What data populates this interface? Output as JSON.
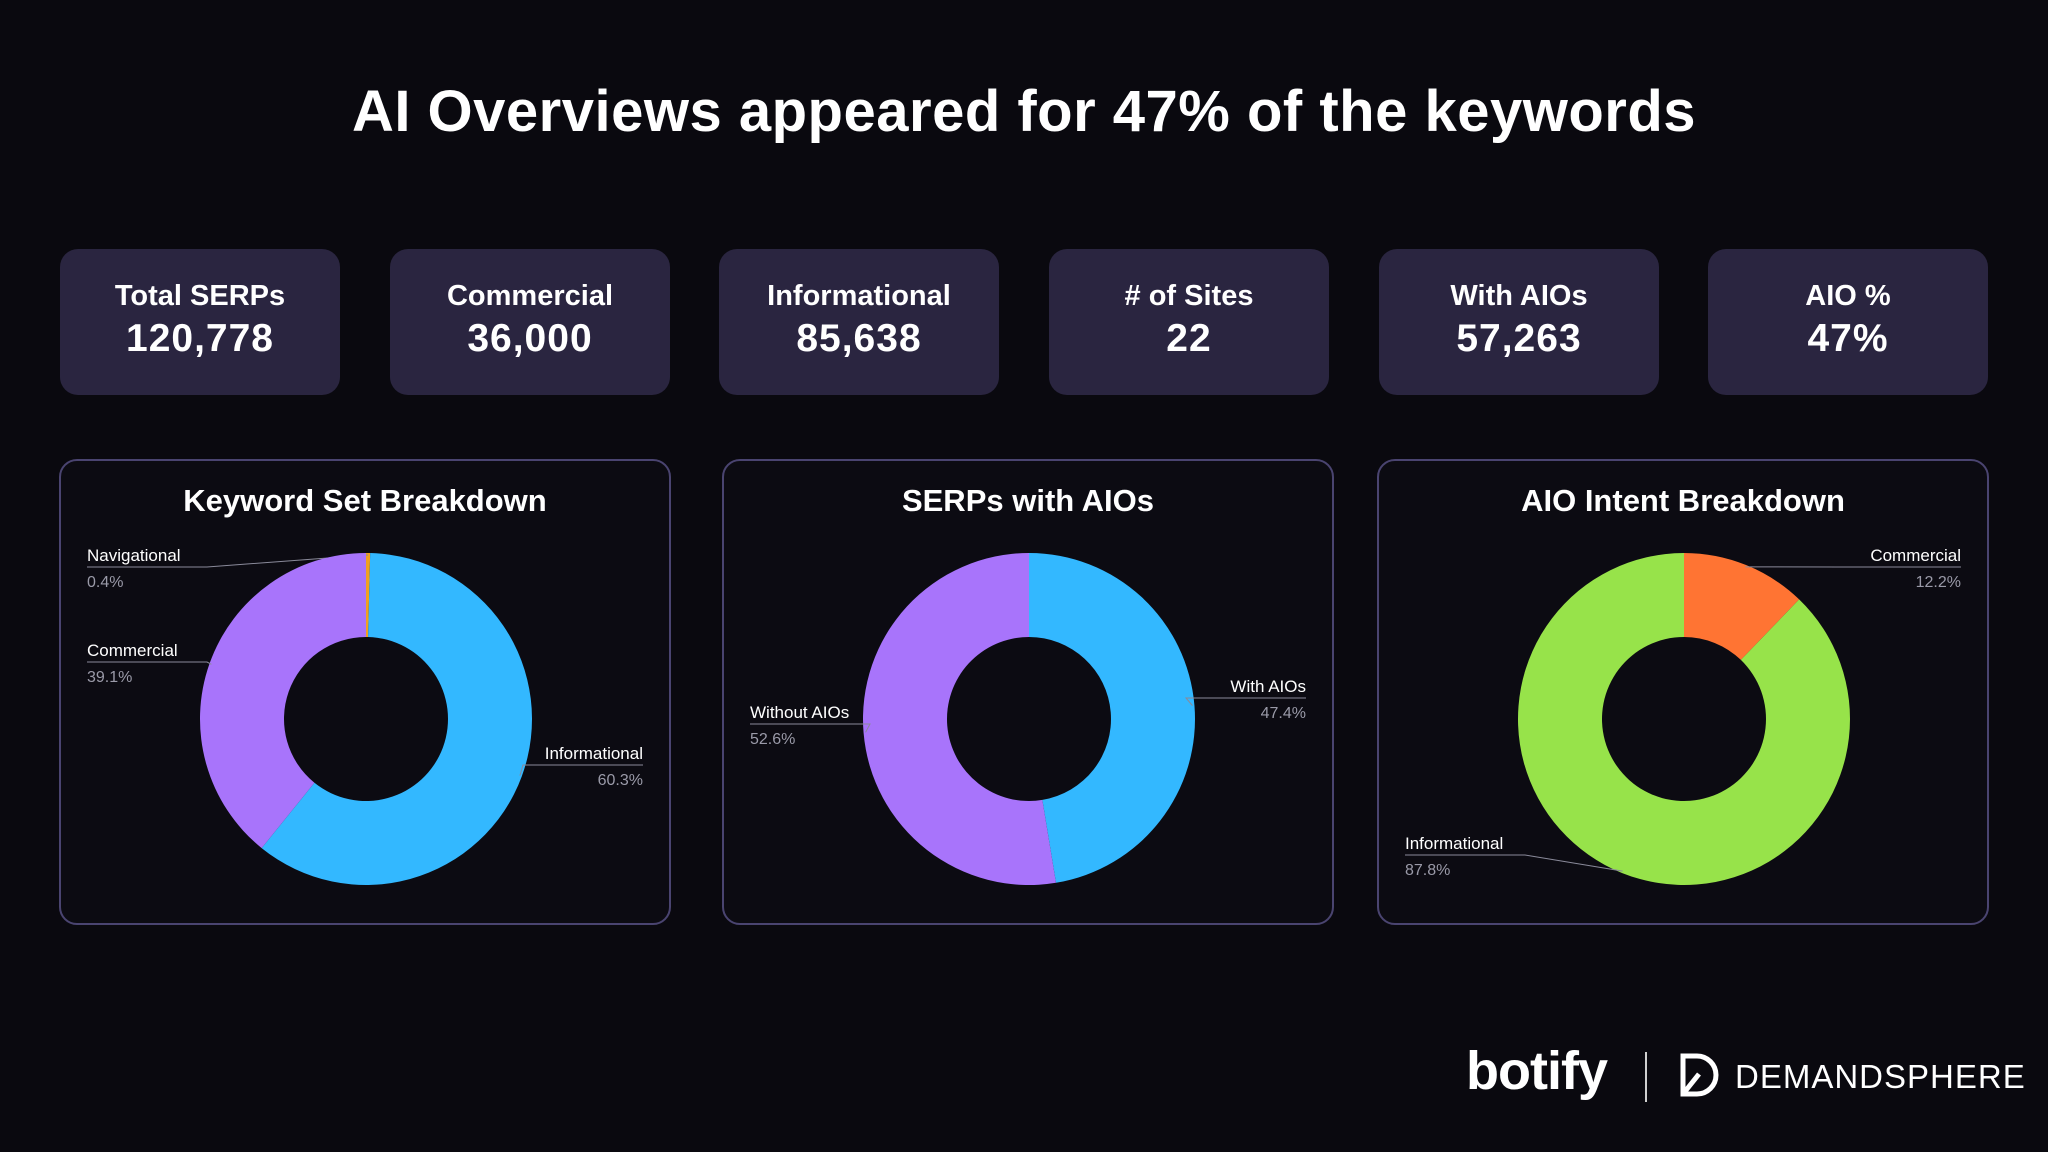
{
  "headline": "AI Overviews appeared for 47% of the keywords",
  "stats": [
    {
      "label": "Total SERPs",
      "value": "120,778"
    },
    {
      "label": "Commercial",
      "value": "36,000"
    },
    {
      "label": "Informational",
      "value": "85,638"
    },
    {
      "label": "# of Sites",
      "value": "22"
    },
    {
      "label": "With AIOs",
      "value": "57,263"
    },
    {
      "label": "AIO %",
      "value": "47%"
    }
  ],
  "colors": {
    "informational": "#33b8ff",
    "commercial_purple": "#a874fb",
    "navigational": "#f0a020",
    "with_aios": "#33b8ff",
    "without_aios": "#a874fb",
    "aio_informational": "#97e34a",
    "aio_commercial": "#ff7433",
    "stat_box": "#2a2540",
    "panel_border": "#4a4470"
  },
  "chart_data": [
    {
      "type": "pie",
      "title": "Keyword Set Breakdown",
      "slices": [
        {
          "label": "Navigational",
          "pct_label": "0.4%",
          "value": 0.4,
          "color": "#f0a020"
        },
        {
          "label": "Informational",
          "pct_label": "60.3%",
          "value": 60.3,
          "color": "#33b8ff"
        },
        {
          "label": "Commercial",
          "pct_label": "39.1%",
          "value": 39.1,
          "color": "#a874fb"
        }
      ]
    },
    {
      "type": "pie",
      "title": "SERPs with AIOs",
      "slices": [
        {
          "label": "With AIOs",
          "pct_label": "47.4%",
          "value": 47.4,
          "color": "#33b8ff"
        },
        {
          "label": "Without AIOs",
          "pct_label": "52.6%",
          "value": 52.6,
          "color": "#a874fb"
        }
      ]
    },
    {
      "type": "pie",
      "title": "AIO Intent Breakdown",
      "slices": [
        {
          "label": "Commercial",
          "pct_label": "12.2%",
          "value": 12.2,
          "color": "#ff7433"
        },
        {
          "label": "Informational",
          "pct_label": "87.8%",
          "value": 87.8,
          "color": "#97e34a"
        }
      ]
    }
  ],
  "brands": {
    "botify": "botify",
    "demandsphere": "DEMANDSPHERE"
  }
}
